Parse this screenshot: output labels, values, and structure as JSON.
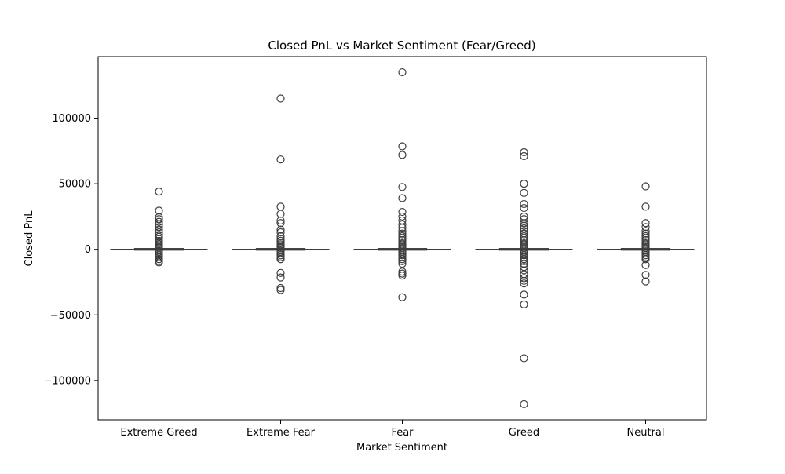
{
  "chart_data": {
    "type": "box",
    "title": "Closed PnL vs Market Sentiment (Fear/Greed)",
    "xlabel": "Market Sentiment",
    "ylabel": "Closed PnL",
    "ylim": [
      -130000,
      147000
    ],
    "yticks": [
      -100000,
      -50000,
      0,
      50000,
      100000
    ],
    "ytick_labels": [
      "−100000",
      "−50000",
      "0",
      "50000",
      "100000"
    ],
    "grid": false,
    "colors": {
      "box_edge": "#3d3d3d",
      "outlier_edge": "#3d3d3d",
      "axis": "#000000"
    },
    "categories": [
      "Extreme Greed",
      "Extreme Fear",
      "Fear",
      "Greed",
      "Neutral"
    ],
    "boxes": [
      {
        "category": "Extreme Greed",
        "whisker_low": -30,
        "q1": 0,
        "median": 0,
        "q3": 10,
        "whisker_high": 50,
        "outliers": [
          44000,
          29500,
          24500,
          23000,
          21000,
          19000,
          17000,
          15000,
          13000,
          11000,
          9500,
          8000,
          6500,
          5000,
          3800,
          2600,
          1600,
          800,
          -800,
          -1800,
          -3000,
          -4500,
          -6000,
          -7500,
          -9000,
          -10000
        ]
      },
      {
        "category": "Extreme Fear",
        "whisker_low": -30,
        "q1": 0,
        "median": 0,
        "q3": 10,
        "whisker_high": 50,
        "outliers": [
          115000,
          68500,
          32500,
          27000,
          22000,
          20000,
          15000,
          13000,
          10000,
          8000,
          6500,
          5000,
          3800,
          2600,
          1600,
          800,
          -800,
          -1800,
          -3000,
          -4500,
          -6000,
          -7500,
          -18000,
          -21500,
          -29500,
          -31000
        ]
      },
      {
        "category": "Fear",
        "whisker_low": -30,
        "q1": 0,
        "median": 0,
        "q3": 10,
        "whisker_high": 50,
        "outliers": [
          135000,
          78500,
          72000,
          47500,
          39000,
          28500,
          25000,
          22000,
          19000,
          16500,
          14000,
          12000,
          10000,
          8500,
          7000,
          5500,
          4200,
          3000,
          2000,
          1000,
          -1000,
          -2000,
          -3200,
          -4500,
          -6000,
          -7500,
          -9000,
          -11000,
          -17000,
          -18500,
          -20000,
          -36500
        ]
      },
      {
        "category": "Greed",
        "whisker_low": -30,
        "q1": 0,
        "median": 0,
        "q3": 10,
        "whisker_high": 50,
        "outliers": [
          74000,
          71000,
          50000,
          43000,
          34500,
          31500,
          25000,
          23000,
          20000,
          18000,
          16000,
          14000,
          12000,
          10000,
          8500,
          7000,
          5500,
          4200,
          3000,
          2000,
          1000,
          -1000,
          -2000,
          -3200,
          -4500,
          -6000,
          -7500,
          -9000,
          -11000,
          -13500,
          -16000,
          -19000,
          -22000,
          -24000,
          -26000,
          -34500,
          -42000,
          -83000,
          -118000
        ]
      },
      {
        "category": "Neutral",
        "whisker_low": -30,
        "q1": 0,
        "median": 0,
        "q3": 10,
        "whisker_high": 50,
        "outliers": [
          48000,
          32500,
          20000,
          17000,
          14000,
          12000,
          10000,
          8500,
          7000,
          5500,
          4200,
          3000,
          2000,
          1000,
          -1000,
          -2000,
          -3200,
          -4500,
          -6000,
          -7500,
          -12000,
          -19500,
          -24500
        ]
      }
    ]
  }
}
